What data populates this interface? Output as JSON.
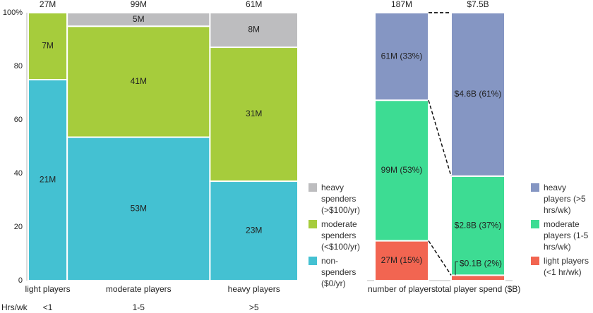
{
  "chart_data": [
    {
      "type": "marimekko",
      "yticks": [
        "0",
        "20",
        "40",
        "60",
        "80",
        "100%"
      ],
      "xaxis_title": "Hrs/wk",
      "columns": [
        {
          "label": "light players",
          "hours": "<1",
          "total": "27M",
          "width": 27,
          "segments": [
            {
              "series": "non-spenders",
              "value": 21,
              "label": "21M"
            },
            {
              "series": "moderate",
              "value": 7,
              "label": "7M"
            },
            {
              "series": "heavy",
              "value": 0,
              "label": ""
            }
          ]
        },
        {
          "label": "moderate players",
          "hours": "1-5",
          "total": "99M",
          "width": 99,
          "segments": [
            {
              "series": "non-spenders",
              "value": 53,
              "label": "53M"
            },
            {
              "series": "moderate",
              "value": 41,
              "label": "41M"
            },
            {
              "series": "heavy",
              "value": 5,
              "label": "5M"
            }
          ]
        },
        {
          "label": "heavy players",
          "hours": ">5",
          "total": "61M",
          "width": 61,
          "segments": [
            {
              "series": "non-spenders",
              "value": 23,
              "label": "23M"
            },
            {
              "series": "moderate",
              "value": 31,
              "label": "31M"
            },
            {
              "series": "heavy",
              "value": 8,
              "label": "8M"
            }
          ]
        }
      ],
      "legend": [
        {
          "series": "heavy",
          "label": "heavy spenders (>$100/yr)"
        },
        {
          "series": "moderate",
          "label": "moderate spenders (<$100/yr)"
        },
        {
          "series": "non-spenders",
          "label": "non-spenders ($0/yr)"
        }
      ]
    },
    {
      "type": "stacked-bar-100",
      "bars": [
        {
          "label": "number of players",
          "total": "187M",
          "segments": [
            {
              "series": "light",
              "value": 15,
              "label": "27M (15%)"
            },
            {
              "series": "moderate",
              "value": 53,
              "label": "99M (53%)"
            },
            {
              "series": "heavy",
              "value": 33,
              "label": "61M (33%)"
            }
          ]
        },
        {
          "label": "total player spend ($B)",
          "total": "$7.5B",
          "segments": [
            {
              "series": "light",
              "value": 2,
              "label": "$0.1B (2%)"
            },
            {
              "series": "moderate",
              "value": 37,
              "label": "$2.8B (37%)"
            },
            {
              "series": "heavy",
              "value": 61,
              "label": "$4.6B (61%)"
            }
          ]
        }
      ],
      "legend": [
        {
          "series": "heavy",
          "label": "heavy players (>5 hrs/wk)"
        },
        {
          "series": "moderate",
          "label": "moderate players (1-5 hrs/wk)"
        },
        {
          "series": "light",
          "label": "light players (<1 hr/wk)"
        }
      ]
    }
  ],
  "colors": {
    "left_heavy": "#bdbdbf",
    "left_moderate": "#a6cc3c",
    "left_non": "#44c1d2",
    "right_heavy": "#8596c3",
    "right_moderate": "#3ddc93",
    "right_light": "#f26551",
    "axis": "#b9b9b9",
    "text": "#222222"
  }
}
